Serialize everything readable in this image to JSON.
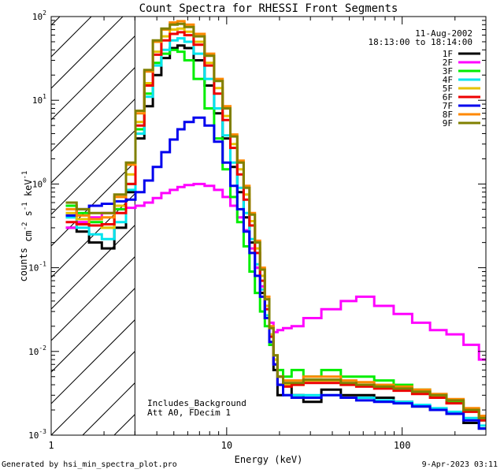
{
  "footer": {
    "generated": "Generated by hsi_min_spectra_plot.pro",
    "date": "9-Apr-2023 03:11"
  },
  "chart_data": {
    "type": "line",
    "title": "Count Spectra for RHESSI Front Segments",
    "xlabel": "Energy (keV)",
    "ylabel": "counts cm-2 s-1 keV-1",
    "xscale": "log",
    "yscale": "log",
    "xlim": [
      1,
      300
    ],
    "ylim": [
      0.001,
      100
    ],
    "x_ticks": [
      "1",
      "10",
      "100"
    ],
    "y_ticks": [
      "10^-3",
      "10^-2",
      "10^-1",
      "10^0",
      "10^1",
      "10^2"
    ],
    "date_label": "11-Aug-2002",
    "time_label": "18:13:00 to 18:14:00",
    "annotations": [
      "Includes_Background",
      "Att A0, FDecim 1"
    ],
    "shaded_region_kev": [
      1,
      3
    ],
    "x": [
      1.3,
      1.5,
      1.8,
      2.1,
      2.5,
      2.85,
      3.2,
      3.6,
      4.0,
      4.5,
      5.0,
      5.5,
      6.0,
      7.0,
      8.0,
      9.0,
      10.0,
      11.0,
      12.0,
      13.0,
      14.0,
      15.0,
      16.0,
      17.0,
      18.0,
      19.0,
      20.0,
      22.0,
      25.0,
      30.0,
      40.0,
      50.0,
      60.0,
      80.0,
      100.0,
      130.0,
      160.0,
      200.0,
      250.0,
      300.0
    ],
    "series": [
      {
        "name": "1F",
        "color": "#000000",
        "values": [
          0.3,
          0.27,
          0.2,
          0.17,
          0.3,
          0.8,
          3.5,
          8.5,
          20,
          32,
          42,
          45,
          42,
          30,
          15,
          7,
          3.5,
          1.6,
          0.8,
          0.4,
          0.2,
          0.1,
          0.05,
          0.025,
          0.012,
          0.006,
          0.003,
          0.004,
          0.003,
          0.0025,
          0.0035,
          0.003,
          0.003,
          0.0028,
          0.0025,
          0.0022,
          0.002,
          0.0018,
          0.0014,
          0.0012
        ]
      },
      {
        "name": "2F",
        "color": "#ff00ff",
        "values": [
          0.3,
          0.35,
          0.4,
          0.45,
          0.5,
          0.52,
          0.55,
          0.6,
          0.68,
          0.78,
          0.85,
          0.92,
          0.97,
          1.0,
          0.95,
          0.85,
          0.7,
          0.55,
          0.4,
          0.28,
          0.17,
          0.1,
          0.06,
          0.035,
          0.022,
          0.017,
          0.018,
          0.019,
          0.02,
          0.025,
          0.032,
          0.04,
          0.045,
          0.035,
          0.028,
          0.022,
          0.018,
          0.016,
          0.012,
          0.008
        ]
      },
      {
        "name": "3F",
        "color": "#00ee00",
        "values": [
          0.55,
          0.45,
          0.35,
          0.3,
          0.5,
          1.0,
          4.5,
          12,
          28,
          36,
          40,
          38,
          30,
          18,
          8,
          3.5,
          1.5,
          0.7,
          0.35,
          0.18,
          0.09,
          0.05,
          0.03,
          0.02,
          0.012,
          0.008,
          0.006,
          0.005,
          0.006,
          0.005,
          0.006,
          0.005,
          0.005,
          0.0045,
          0.004,
          0.0035,
          0.003,
          0.0025,
          0.002,
          0.0015
        ]
      },
      {
        "name": "4F",
        "color": "#00e5ee",
        "values": [
          0.4,
          0.3,
          0.25,
          0.22,
          0.35,
          0.85,
          4.0,
          11,
          26,
          40,
          52,
          55,
          50,
          36,
          18,
          8,
          3.8,
          1.8,
          0.9,
          0.45,
          0.22,
          0.11,
          0.055,
          0.027,
          0.013,
          0.007,
          0.004,
          0.003,
          0.003,
          0.003,
          0.003,
          0.0028,
          0.0028,
          0.0026,
          0.0025,
          0.0023,
          0.0021,
          0.0019,
          0.0016,
          0.0013
        ]
      },
      {
        "name": "5F",
        "color": "#e6c200",
        "values": [
          0.45,
          0.38,
          0.32,
          0.3,
          0.55,
          1.3,
          5.5,
          16,
          38,
          58,
          70,
          72,
          66,
          50,
          28,
          14,
          6.5,
          3.0,
          1.5,
          0.75,
          0.36,
          0.17,
          0.08,
          0.035,
          0.016,
          0.008,
          0.005,
          0.004,
          0.004,
          0.0045,
          0.0045,
          0.004,
          0.004,
          0.0038,
          0.0036,
          0.0033,
          0.003,
          0.0026,
          0.002,
          0.0016
        ]
      },
      {
        "name": "6F",
        "color": "#ee0000",
        "values": [
          0.35,
          0.33,
          0.32,
          0.33,
          0.45,
          1.0,
          5.0,
          15,
          35,
          52,
          62,
          65,
          60,
          46,
          26,
          12,
          5.8,
          2.7,
          1.3,
          0.65,
          0.32,
          0.15,
          0.07,
          0.032,
          0.015,
          0.007,
          0.004,
          0.0038,
          0.004,
          0.0042,
          0.0042,
          0.004,
          0.0038,
          0.0036,
          0.0034,
          0.0031,
          0.0028,
          0.0024,
          0.0019,
          0.0015
        ]
      },
      {
        "name": "7F",
        "color": "#0000ee",
        "values": [
          0.42,
          0.5,
          0.55,
          0.58,
          0.62,
          0.65,
          0.8,
          1.1,
          1.6,
          2.4,
          3.4,
          4.5,
          5.5,
          6.2,
          5.0,
          3.2,
          1.8,
          0.95,
          0.5,
          0.27,
          0.15,
          0.08,
          0.045,
          0.025,
          0.013,
          0.007,
          0.004,
          0.003,
          0.0028,
          0.0028,
          0.003,
          0.0028,
          0.0026,
          0.0025,
          0.0024,
          0.0022,
          0.002,
          0.0018,
          0.0015,
          0.0012
        ]
      },
      {
        "name": "8F",
        "color": "#ff8800",
        "values": [
          0.5,
          0.42,
          0.38,
          0.4,
          0.7,
          1.7,
          7.0,
          22,
          50,
          70,
          85,
          88,
          80,
          62,
          36,
          18,
          8.5,
          3.9,
          1.9,
          0.95,
          0.45,
          0.21,
          0.1,
          0.045,
          0.02,
          0.009,
          0.005,
          0.0045,
          0.0045,
          0.005,
          0.005,
          0.0045,
          0.0043,
          0.004,
          0.0038,
          0.0035,
          0.0031,
          0.0027,
          0.0021,
          0.0017
        ]
      },
      {
        "name": "9F",
        "color": "#808000",
        "values": [
          0.6,
          0.5,
          0.45,
          0.45,
          0.75,
          1.8,
          7.5,
          23,
          52,
          72,
          80,
          82,
          75,
          58,
          34,
          17,
          8.0,
          3.7,
          1.8,
          0.9,
          0.43,
          0.2,
          0.095,
          0.042,
          0.019,
          0.009,
          0.005,
          0.0042,
          0.0042,
          0.0046,
          0.0046,
          0.0042,
          0.004,
          0.0038,
          0.0036,
          0.0033,
          0.003,
          0.0026,
          0.002,
          0.0016
        ]
      }
    ]
  }
}
